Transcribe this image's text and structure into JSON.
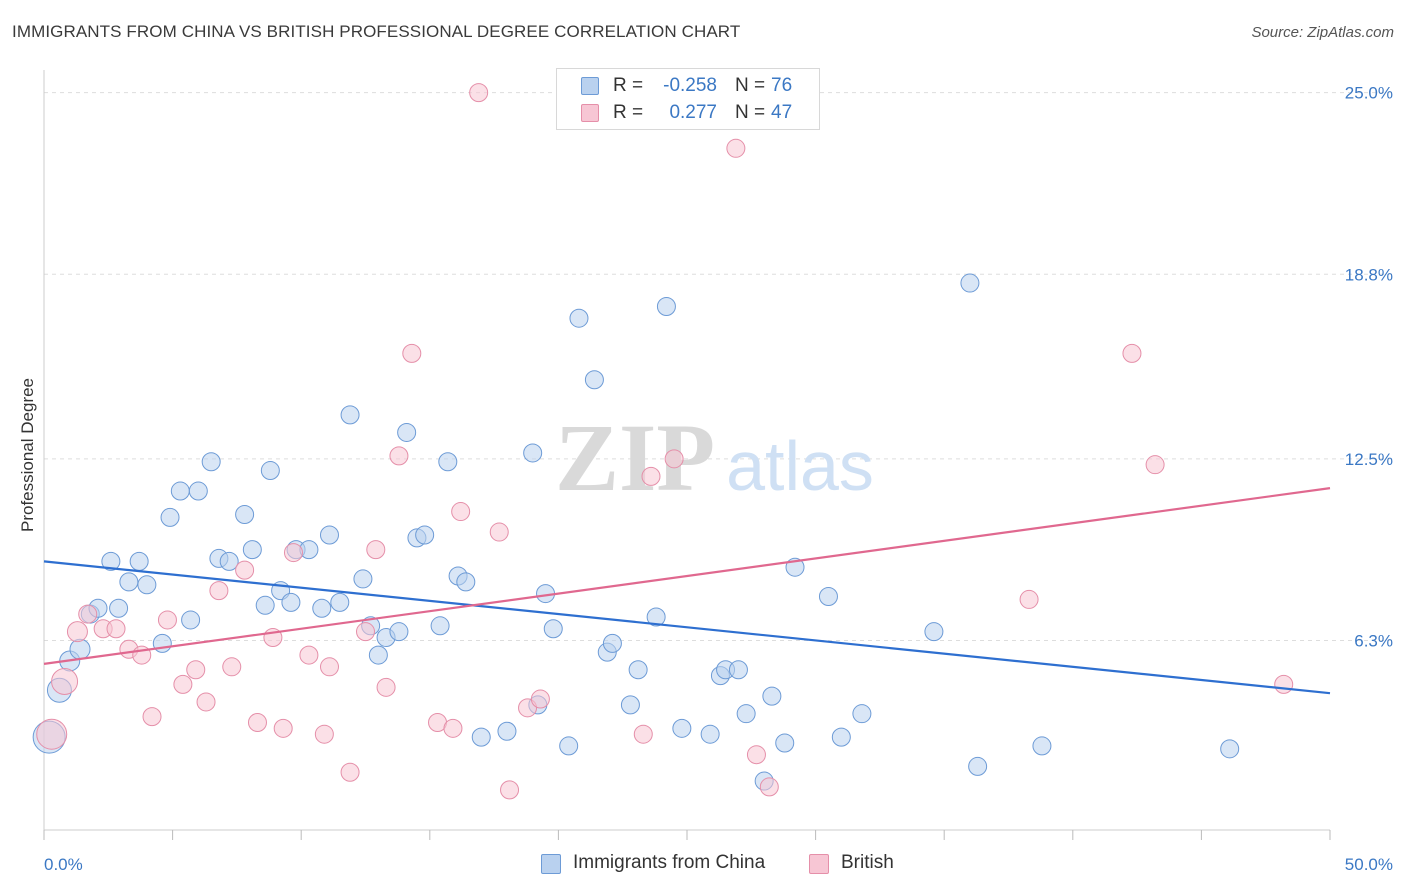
{
  "title": "IMMIGRANTS FROM CHINA VS BRITISH PROFESSIONAL DEGREE CORRELATION CHART",
  "source": "Source: ZipAtlas.com",
  "watermark": {
    "zip": "ZIP",
    "atlas": "atlas"
  },
  "colors": {
    "blue_fill": "#b9d1ef",
    "blue_stroke": "#6d9bd6",
    "blue_line": "#2e6fd0",
    "pink_fill": "#f7c6d4",
    "pink_stroke": "#e58fa9",
    "pink_line": "#e0688f",
    "tick_text": "#3b78c4",
    "grid": "#dddddd"
  },
  "legend_top": {
    "rows": [
      {
        "r_label": "R =",
        "r_value": "-0.258",
        "n_label": "N =",
        "n_value": "76"
      },
      {
        "r_label": "R =",
        "r_value": "0.277",
        "n_label": "N =",
        "n_value": "47"
      }
    ]
  },
  "chart_data": {
    "type": "scatter",
    "title": "IMMIGRANTS FROM CHINA VS BRITISH PROFESSIONAL DEGREE CORRELATION CHART",
    "xlabel": "",
    "ylabel": "Professional Degree",
    "xlim": [
      0,
      50
    ],
    "ylim": [
      0,
      25.5
    ],
    "x_tick_labels": [
      "0.0%",
      "50.0%"
    ],
    "y_ticks": [
      6.3,
      12.5,
      18.8,
      25.0
    ],
    "y_tick_labels": [
      "6.3%",
      "12.5%",
      "18.8%",
      "25.0%"
    ],
    "grid": "horizontal dashed",
    "legend_placement": "bottom-center",
    "series": [
      {
        "name": "Immigrants from China",
        "color": "blue",
        "trend": {
          "x": [
            0,
            50
          ],
          "y": [
            9.0,
            4.5
          ]
        },
        "points": [
          [
            0.2,
            3.0,
            16
          ],
          [
            0.6,
            4.6,
            12
          ],
          [
            1.0,
            5.6,
            10
          ],
          [
            1.4,
            6.0,
            10
          ],
          [
            1.8,
            7.2,
            9
          ],
          [
            2.1,
            7.4,
            9
          ],
          [
            2.6,
            9.0,
            9
          ],
          [
            2.9,
            7.4,
            9
          ],
          [
            3.3,
            8.3,
            9
          ],
          [
            3.7,
            9.0,
            9
          ],
          [
            4.0,
            8.2,
            9
          ],
          [
            4.6,
            6.2,
            9
          ],
          [
            4.9,
            10.5,
            9
          ],
          [
            5.3,
            11.4,
            9
          ],
          [
            5.7,
            7.0,
            9
          ],
          [
            6.0,
            11.4,
            9
          ],
          [
            6.5,
            12.4,
            9
          ],
          [
            6.8,
            9.1,
            9
          ],
          [
            7.2,
            9.0,
            9
          ],
          [
            7.8,
            10.6,
            9
          ],
          [
            8.1,
            9.4,
            9
          ],
          [
            8.6,
            7.5,
            9
          ],
          [
            8.8,
            12.1,
            9
          ],
          [
            9.2,
            8.0,
            9
          ],
          [
            9.6,
            7.6,
            9
          ],
          [
            9.8,
            9.4,
            9
          ],
          [
            10.3,
            9.4,
            9
          ],
          [
            10.8,
            7.4,
            9
          ],
          [
            11.1,
            9.9,
            9
          ],
          [
            11.5,
            7.6,
            9
          ],
          [
            11.9,
            14.0,
            9
          ],
          [
            12.4,
            8.4,
            9
          ],
          [
            12.7,
            6.8,
            9
          ],
          [
            13.0,
            5.8,
            9
          ],
          [
            13.3,
            6.4,
            9
          ],
          [
            13.8,
            6.6,
            9
          ],
          [
            14.1,
            13.4,
            9
          ],
          [
            14.5,
            9.8,
            9
          ],
          [
            14.8,
            9.9,
            9
          ],
          [
            15.4,
            6.8,
            9
          ],
          [
            15.7,
            12.4,
            9
          ],
          [
            16.1,
            8.5,
            9
          ],
          [
            16.4,
            8.3,
            9
          ],
          [
            17.0,
            3.0,
            9
          ],
          [
            18.0,
            3.2,
            9
          ],
          [
            19.0,
            12.7,
            9
          ],
          [
            19.2,
            4.1,
            9
          ],
          [
            19.5,
            7.9,
            9
          ],
          [
            19.8,
            6.7,
            9
          ],
          [
            20.4,
            2.7,
            9
          ],
          [
            20.8,
            17.3,
            9
          ],
          [
            21.4,
            15.2,
            9
          ],
          [
            21.9,
            5.9,
            9
          ],
          [
            22.1,
            6.2,
            9
          ],
          [
            22.8,
            4.1,
            9
          ],
          [
            23.1,
            5.3,
            9
          ],
          [
            23.8,
            7.1,
            9
          ],
          [
            24.2,
            17.7,
            9
          ],
          [
            24.8,
            3.3,
            9
          ],
          [
            25.9,
            3.1,
            9
          ],
          [
            26.3,
            5.1,
            9
          ],
          [
            26.5,
            5.3,
            9
          ],
          [
            27.0,
            5.3,
            9
          ],
          [
            27.3,
            3.8,
            9
          ],
          [
            28.0,
            1.5,
            9
          ],
          [
            28.3,
            4.4,
            9
          ],
          [
            28.8,
            2.8,
            9
          ],
          [
            29.2,
            8.8,
            9
          ],
          [
            30.5,
            7.8,
            9
          ],
          [
            31.0,
            3.0,
            9
          ],
          [
            31.8,
            3.8,
            9
          ],
          [
            34.6,
            6.6,
            9
          ],
          [
            36.0,
            18.5,
            9
          ],
          [
            36.3,
            2.0,
            9
          ],
          [
            38.8,
            2.7,
            9
          ],
          [
            46.1,
            2.6,
            9
          ]
        ]
      },
      {
        "name": "British",
        "color": "pink",
        "trend": {
          "x": [
            0,
            50
          ],
          "y": [
            5.5,
            11.5
          ]
        },
        "points": [
          [
            0.3,
            3.1,
            15
          ],
          [
            0.8,
            4.9,
            13
          ],
          [
            1.3,
            6.6,
            10
          ],
          [
            1.7,
            7.2,
            9
          ],
          [
            2.3,
            6.7,
            9
          ],
          [
            2.8,
            6.7,
            9
          ],
          [
            3.3,
            6.0,
            9
          ],
          [
            3.8,
            5.8,
            9
          ],
          [
            4.2,
            3.7,
            9
          ],
          [
            4.8,
            7.0,
            9
          ],
          [
            5.4,
            4.8,
            9
          ],
          [
            5.9,
            5.3,
            9
          ],
          [
            6.3,
            4.2,
            9
          ],
          [
            6.8,
            8.0,
            9
          ],
          [
            7.3,
            5.4,
            9
          ],
          [
            7.8,
            8.7,
            9
          ],
          [
            8.3,
            3.5,
            9
          ],
          [
            8.9,
            6.4,
            9
          ],
          [
            9.3,
            3.3,
            9
          ],
          [
            9.7,
            9.3,
            9
          ],
          [
            10.3,
            5.8,
            9
          ],
          [
            10.9,
            3.1,
            9
          ],
          [
            11.1,
            5.4,
            9
          ],
          [
            11.9,
            1.8,
            9
          ],
          [
            12.5,
            6.6,
            9
          ],
          [
            12.9,
            9.4,
            9
          ],
          [
            13.3,
            4.7,
            9
          ],
          [
            13.8,
            12.6,
            9
          ],
          [
            14.3,
            16.1,
            9
          ],
          [
            15.3,
            3.5,
            9
          ],
          [
            15.9,
            3.3,
            9
          ],
          [
            16.2,
            10.7,
            9
          ],
          [
            16.9,
            25.0,
            9
          ],
          [
            17.7,
            10.0,
            9
          ],
          [
            18.1,
            1.2,
            9
          ],
          [
            18.8,
            4.0,
            9
          ],
          [
            19.3,
            4.3,
            9
          ],
          [
            23.3,
            3.1,
            9
          ],
          [
            23.6,
            11.9,
            9
          ],
          [
            24.5,
            12.5,
            9
          ],
          [
            26.9,
            23.1,
            9
          ],
          [
            27.7,
            2.4,
            9
          ],
          [
            28.2,
            1.3,
            9
          ],
          [
            38.3,
            7.7,
            9
          ],
          [
            42.3,
            16.1,
            9
          ],
          [
            43.2,
            12.3,
            9
          ],
          [
            48.2,
            4.8,
            9
          ]
        ]
      }
    ]
  }
}
